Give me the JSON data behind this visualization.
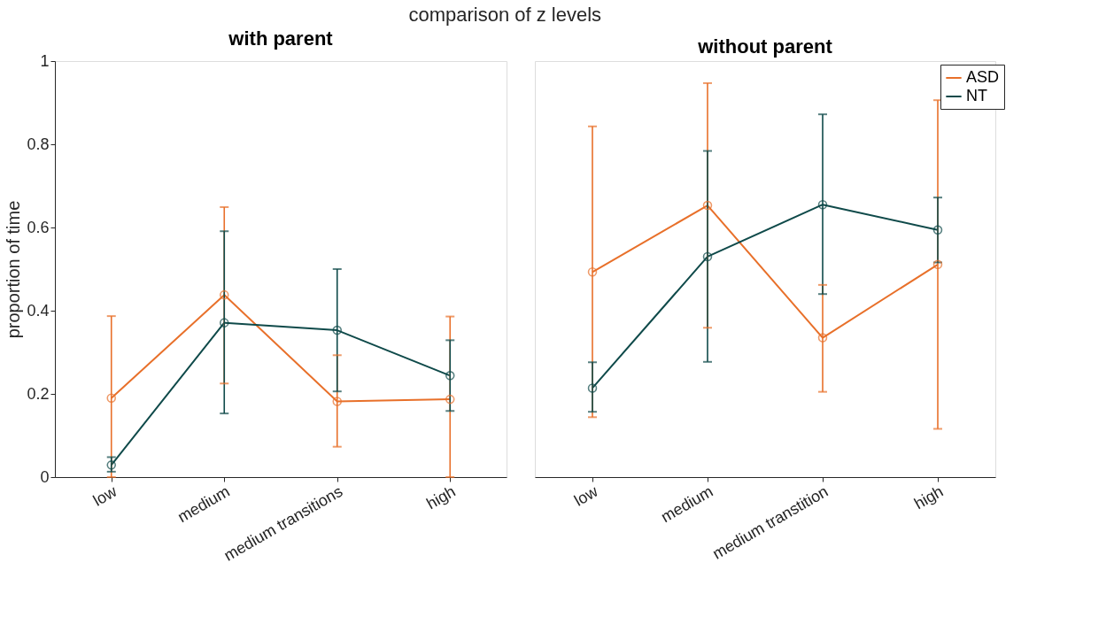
{
  "chart_data": [
    {
      "type": "line",
      "title": "with parent",
      "annotations": [
        "comparison of z levels"
      ],
      "ylabel": "proportion of time",
      "categories": [
        "low",
        "medium",
        "medium transitions",
        "high"
      ],
      "ylim": [
        0,
        1
      ],
      "yticks": [
        0,
        0.2,
        0.4,
        0.6,
        0.8,
        1
      ],
      "marker": "circle",
      "grid": false,
      "series": [
        {
          "color": "#e8702a",
          "values": [
            0.19,
            0.438,
            0.182,
            0.187
          ],
          "errors": [
            [
              0,
              0.387
            ],
            [
              0.225,
              0.649
            ],
            [
              0.073,
              0.293
            ],
            [
              0,
              0.386
            ]
          ]
        },
        {
          "color": "#0f4a4a",
          "values": [
            0.029,
            0.371,
            0.353,
            0.244
          ],
          "errors": [
            [
              0.013,
              0.048
            ],
            [
              0.153,
              0.591
            ],
            [
              0.206,
              0.5
            ],
            [
              0.159,
              0.329
            ]
          ]
        }
      ]
    },
    {
      "type": "line",
      "title": "without parent",
      "categories": [
        "low",
        "medium",
        "medium transtition",
        "high"
      ],
      "ylim": [
        0,
        1
      ],
      "yticks": [
        0,
        0.2,
        0.4,
        0.6,
        0.8,
        1
      ],
      "tick_labels": "x",
      "marker": "circle",
      "grid": false,
      "legend": "top right",
      "series": [
        {
          "name": "ASD",
          "color": "#e8702a",
          "values": [
            0.493,
            0.653,
            0.335,
            0.511
          ],
          "errors": [
            [
              0.144,
              0.843
            ],
            [
              0.359,
              0.947
            ],
            [
              0.205,
              0.462
            ],
            [
              0.116,
              0.906
            ]
          ]
        },
        {
          "name": "NT",
          "color": "#0f4a4a",
          "values": [
            0.214,
            0.53,
            0.655,
            0.594
          ],
          "errors": [
            [
              0.157,
              0.276
            ],
            [
              0.277,
              0.784
            ],
            [
              0.44,
              0.872
            ],
            [
              0.516,
              0.672
            ]
          ]
        }
      ]
    }
  ]
}
